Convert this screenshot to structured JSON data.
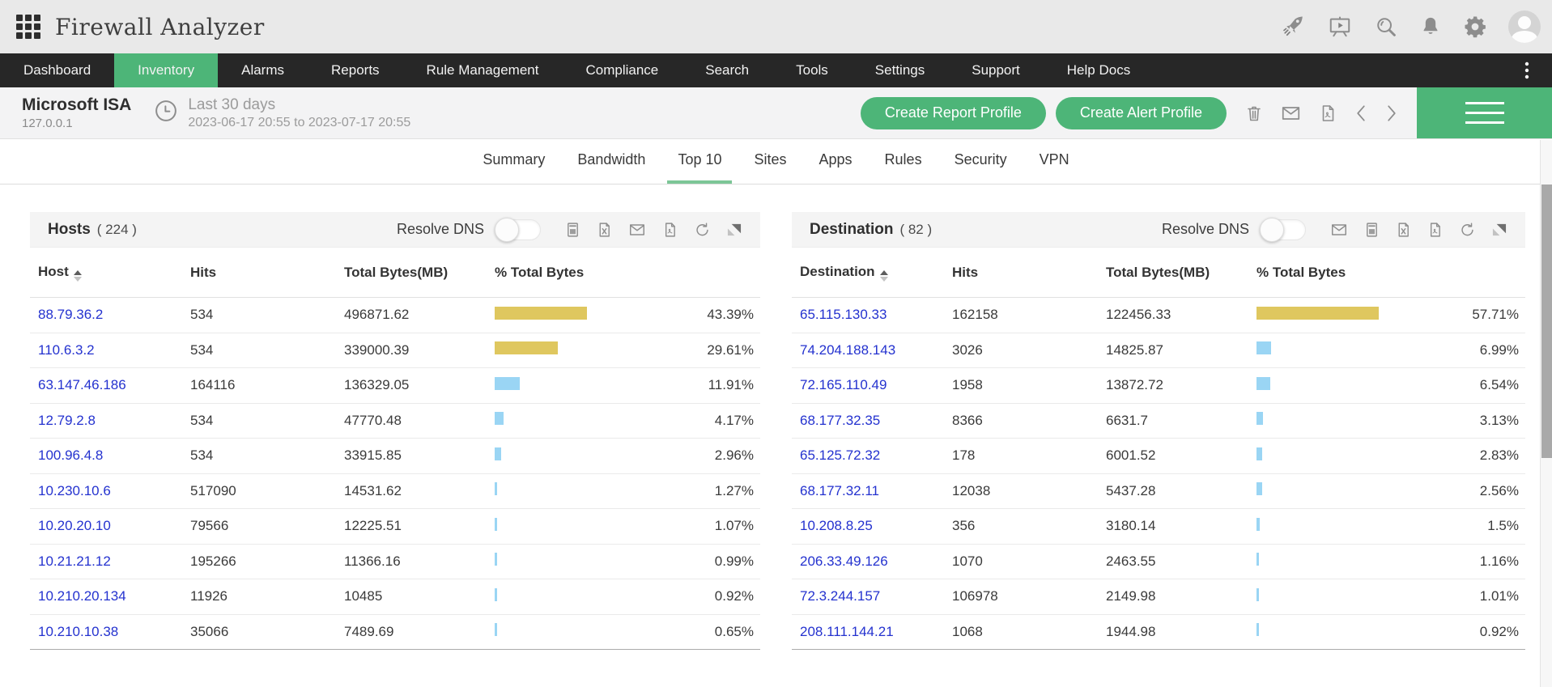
{
  "app": {
    "title": "Firewall Analyzer"
  },
  "header_icons": [
    "app-grid-icon",
    "rocket-icon",
    "demo-video-icon",
    "search-icon",
    "notifications-bell-icon",
    "settings-gear-icon",
    "user-avatar"
  ],
  "nav": {
    "items": [
      "Dashboard",
      "Inventory",
      "Alarms",
      "Reports",
      "Rule Management",
      "Compliance",
      "Search",
      "Tools",
      "Settings",
      "Support",
      "Help Docs"
    ],
    "active": "Inventory",
    "overflow_icon": "kebab-menu-icon"
  },
  "device_bar": {
    "device_name": "Microsoft ISA",
    "device_ip": "127.0.0.1",
    "clock_icon": "clock-icon",
    "period_label": "Last 30 days",
    "period_range": "2023-06-17 20:55 to 2023-07-17 20:55",
    "report_button": "Create Report Profile",
    "alert_button": "Create Alert Profile",
    "action_icons": [
      "delete-icon",
      "email-icon",
      "pdf-export-icon",
      "chevron-left-icon",
      "chevron-right-icon",
      "hamburger-menu-icon"
    ]
  },
  "tabs": {
    "items": [
      "Summary",
      "Bandwidth",
      "Top 10",
      "Sites",
      "Apps",
      "Rules",
      "Security",
      "VPN"
    ],
    "active": "Top 10"
  },
  "panels": [
    {
      "title": "Hosts",
      "count_label": "( 224 )",
      "resolve_dns_label": "Resolve DNS",
      "toggle_on": false,
      "header_icons": [
        "csv-export-icon",
        "excel-export-icon",
        "email-icon",
        "pdf-export-icon",
        "refresh-icon",
        "expand-icon"
      ],
      "columns": [
        "Host",
        "Hits",
        "Total Bytes(MB)",
        "% Total Bytes"
      ],
      "rows": [
        {
          "host": "88.79.36.2",
          "hits": "534",
          "bytes": "496871.62",
          "pct": 43.39,
          "pct_label": "43.39%"
        },
        {
          "host": "110.6.3.2",
          "hits": "534",
          "bytes": "339000.39",
          "pct": 29.61,
          "pct_label": "29.61%"
        },
        {
          "host": "63.147.46.186",
          "hits": "164116",
          "bytes": "136329.05",
          "pct": 11.91,
          "pct_label": "11.91%"
        },
        {
          "host": "12.79.2.8",
          "hits": "534",
          "bytes": "47770.48",
          "pct": 4.17,
          "pct_label": "4.17%"
        },
        {
          "host": "100.96.4.8",
          "hits": "534",
          "bytes": "33915.85",
          "pct": 2.96,
          "pct_label": "2.96%"
        },
        {
          "host": "10.230.10.6",
          "hits": "517090",
          "bytes": "14531.62",
          "pct": 1.27,
          "pct_label": "1.27%"
        },
        {
          "host": "10.20.20.10",
          "hits": "79566",
          "bytes": "12225.51",
          "pct": 1.07,
          "pct_label": "1.07%"
        },
        {
          "host": "10.21.21.12",
          "hits": "195266",
          "bytes": "11366.16",
          "pct": 0.99,
          "pct_label": "0.99%"
        },
        {
          "host": "10.210.20.134",
          "hits": "11926",
          "bytes": "10485",
          "pct": 0.92,
          "pct_label": "0.92%"
        },
        {
          "host": "10.210.10.38",
          "hits": "35066",
          "bytes": "7489.69",
          "pct": 0.65,
          "pct_label": "0.65%"
        }
      ]
    },
    {
      "title": "Destination",
      "count_label": "( 82 )",
      "resolve_dns_label": "Resolve DNS",
      "toggle_on": false,
      "header_icons": [
        "email-icon",
        "csv-export-icon",
        "excel-export-icon",
        "pdf-export-icon",
        "refresh-icon",
        "expand-icon"
      ],
      "columns": [
        "Destination",
        "Hits",
        "Total Bytes(MB)",
        "% Total Bytes"
      ],
      "rows": [
        {
          "host": "65.115.130.33",
          "hits": "162158",
          "bytes": "122456.33",
          "pct": 57.71,
          "pct_label": "57.71%"
        },
        {
          "host": "74.204.188.143",
          "hits": "3026",
          "bytes": "14825.87",
          "pct": 6.99,
          "pct_label": "6.99%"
        },
        {
          "host": "72.165.110.49",
          "hits": "1958",
          "bytes": "13872.72",
          "pct": 6.54,
          "pct_label": "6.54%"
        },
        {
          "host": "68.177.32.35",
          "hits": "8366",
          "bytes": "6631.7",
          "pct": 3.13,
          "pct_label": "3.13%"
        },
        {
          "host": "65.125.72.32",
          "hits": "178",
          "bytes": "6001.52",
          "pct": 2.83,
          "pct_label": "2.83%"
        },
        {
          "host": "68.177.32.11",
          "hits": "12038",
          "bytes": "5437.28",
          "pct": 2.56,
          "pct_label": "2.56%"
        },
        {
          "host": "10.208.8.25",
          "hits": "356",
          "bytes": "3180.14",
          "pct": 1.5,
          "pct_label": "1.5%"
        },
        {
          "host": "206.33.49.126",
          "hits": "1070",
          "bytes": "2463.55",
          "pct": 1.16,
          "pct_label": "1.16%"
        },
        {
          "host": "72.3.244.157",
          "hits": "106978",
          "bytes": "2149.98",
          "pct": 1.01,
          "pct_label": "1.01%"
        },
        {
          "host": "208.111.144.21",
          "hits": "1068",
          "bytes": "1944.98",
          "pct": 0.92,
          "pct_label": "0.92%"
        }
      ]
    }
  ],
  "colors": {
    "accent_green": "#4db578",
    "nav_dark": "#272727",
    "bar_yellow": "#dfc75f",
    "bar_blue": "#9ad5f4",
    "link_blue": "#2432cf"
  }
}
